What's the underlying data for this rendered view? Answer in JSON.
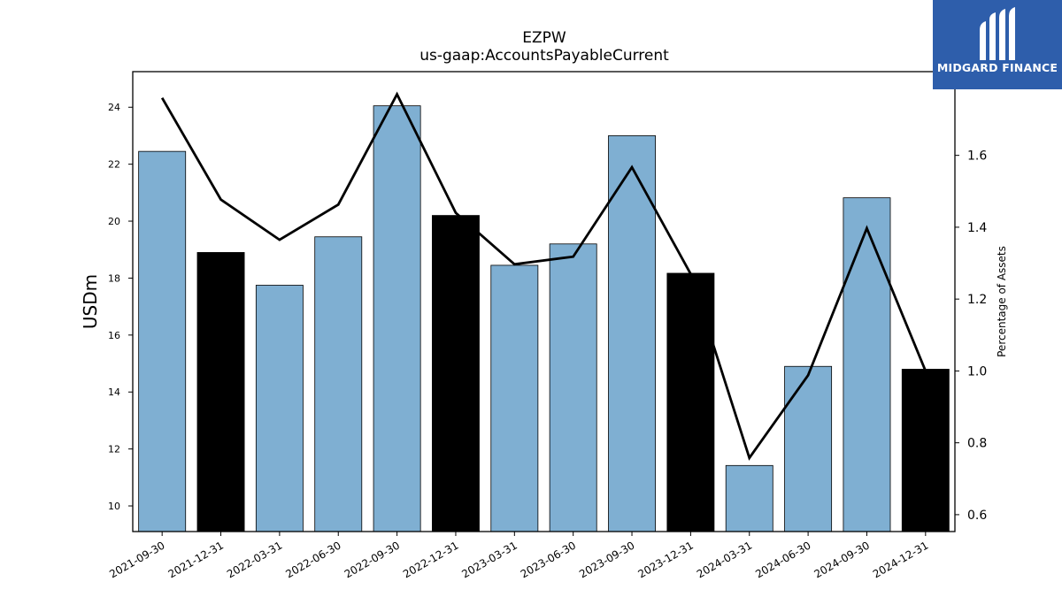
{
  "chart_data": {
    "type": "bar",
    "title": "EZPW",
    "subtitle": "us-gaap:AccountsPayableCurrent",
    "ylabel": "USDm",
    "y2label": "Percentage of Assets",
    "categories": [
      "2021-09-30",
      "2021-12-31",
      "2022-03-31",
      "2022-06-30",
      "2022-09-30",
      "2022-12-31",
      "2023-03-31",
      "2023-06-30",
      "2023-09-30",
      "2023-12-31",
      "2024-03-31",
      "2024-06-30",
      "2024-09-30",
      "2024-12-31"
    ],
    "series": [
      {
        "type": "bar",
        "values": [
          22.45,
          18.9,
          17.75,
          19.45,
          24.05,
          20.2,
          18.45,
          19.2,
          23.0,
          18.17,
          11.42,
          14.9,
          20.82,
          14.8
        ]
      },
      {
        "type": "line",
        "axis": "right",
        "values": [
          1.76,
          1.477,
          1.365,
          1.463,
          1.77,
          1.44,
          1.297,
          1.318,
          1.567,
          1.27,
          0.758,
          0.988,
          1.397,
          1.0
        ]
      }
    ],
    "bar_colors": [
      "#7fafd2",
      "#000000",
      "#7fafd2",
      "#7fafd2",
      "#7fafd2",
      "#000000",
      "#7fafd2",
      "#7fafd2",
      "#7fafd2",
      "#000000",
      "#7fafd2",
      "#7fafd2",
      "#7fafd2",
      "#000000"
    ],
    "line_color": "#000000",
    "ylim": [
      9.1,
      25.25
    ],
    "y2lim": [
      0.553,
      1.833
    ],
    "yticks": [
      10,
      12,
      14,
      16,
      18,
      20,
      22,
      24
    ],
    "y2ticks": [
      0.6,
      0.8,
      1.0,
      1.2,
      1.4,
      1.6
    ],
    "grid": false,
    "legend": "none"
  },
  "logo": {
    "text": "MIDGARD FINANCE",
    "bg_color": "#2e5eab"
  }
}
